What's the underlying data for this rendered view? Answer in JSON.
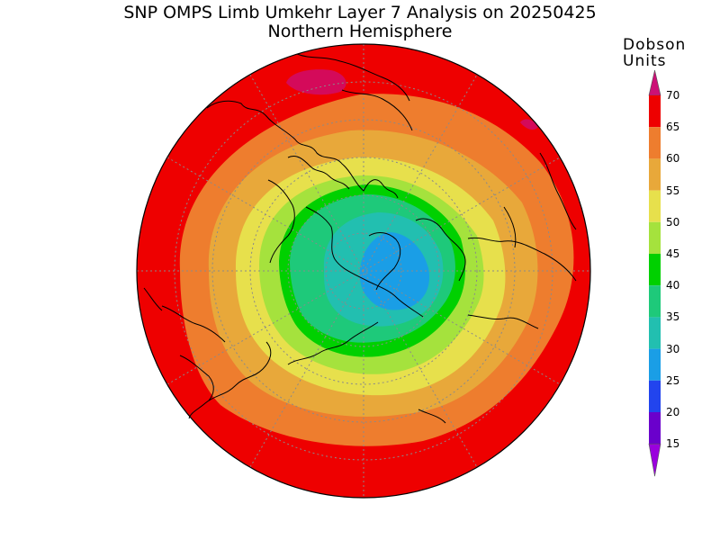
{
  "title": "SNP OMPS Limb Umkehr Layer 7 Analysis on 20250425",
  "subtitle": "Northern Hemisphere",
  "colorbar": {
    "units_line1": "Dobson",
    "units_line2": "Units",
    "levels": [
      {
        "value": "70",
        "color": "#ee0000"
      },
      {
        "value": "65",
        "color": "#ee7d2e"
      },
      {
        "value": "60",
        "color": "#e8a83a"
      },
      {
        "value": "55",
        "color": "#e7e04c"
      },
      {
        "value": "50",
        "color": "#a5e23d"
      },
      {
        "value": "45",
        "color": "#00d000"
      },
      {
        "value": "40",
        "color": "#1ec97a"
      },
      {
        "value": "35",
        "color": "#22bfb0"
      },
      {
        "value": "30",
        "color": "#1a9ee6"
      },
      {
        "value": "25",
        "color": "#2244ee"
      },
      {
        "value": "20",
        "color": "#6a00cc"
      },
      {
        "value": "15",
        "color": "#9a00dd"
      }
    ],
    "top_arrow_color": "#cc1177",
    "bottom_arrow_color": "#9a00dd"
  },
  "map": {
    "projection": "north-polar-stereographic",
    "high_spot_color": "#d40a5a",
    "grid_line_color": "#888888"
  }
}
